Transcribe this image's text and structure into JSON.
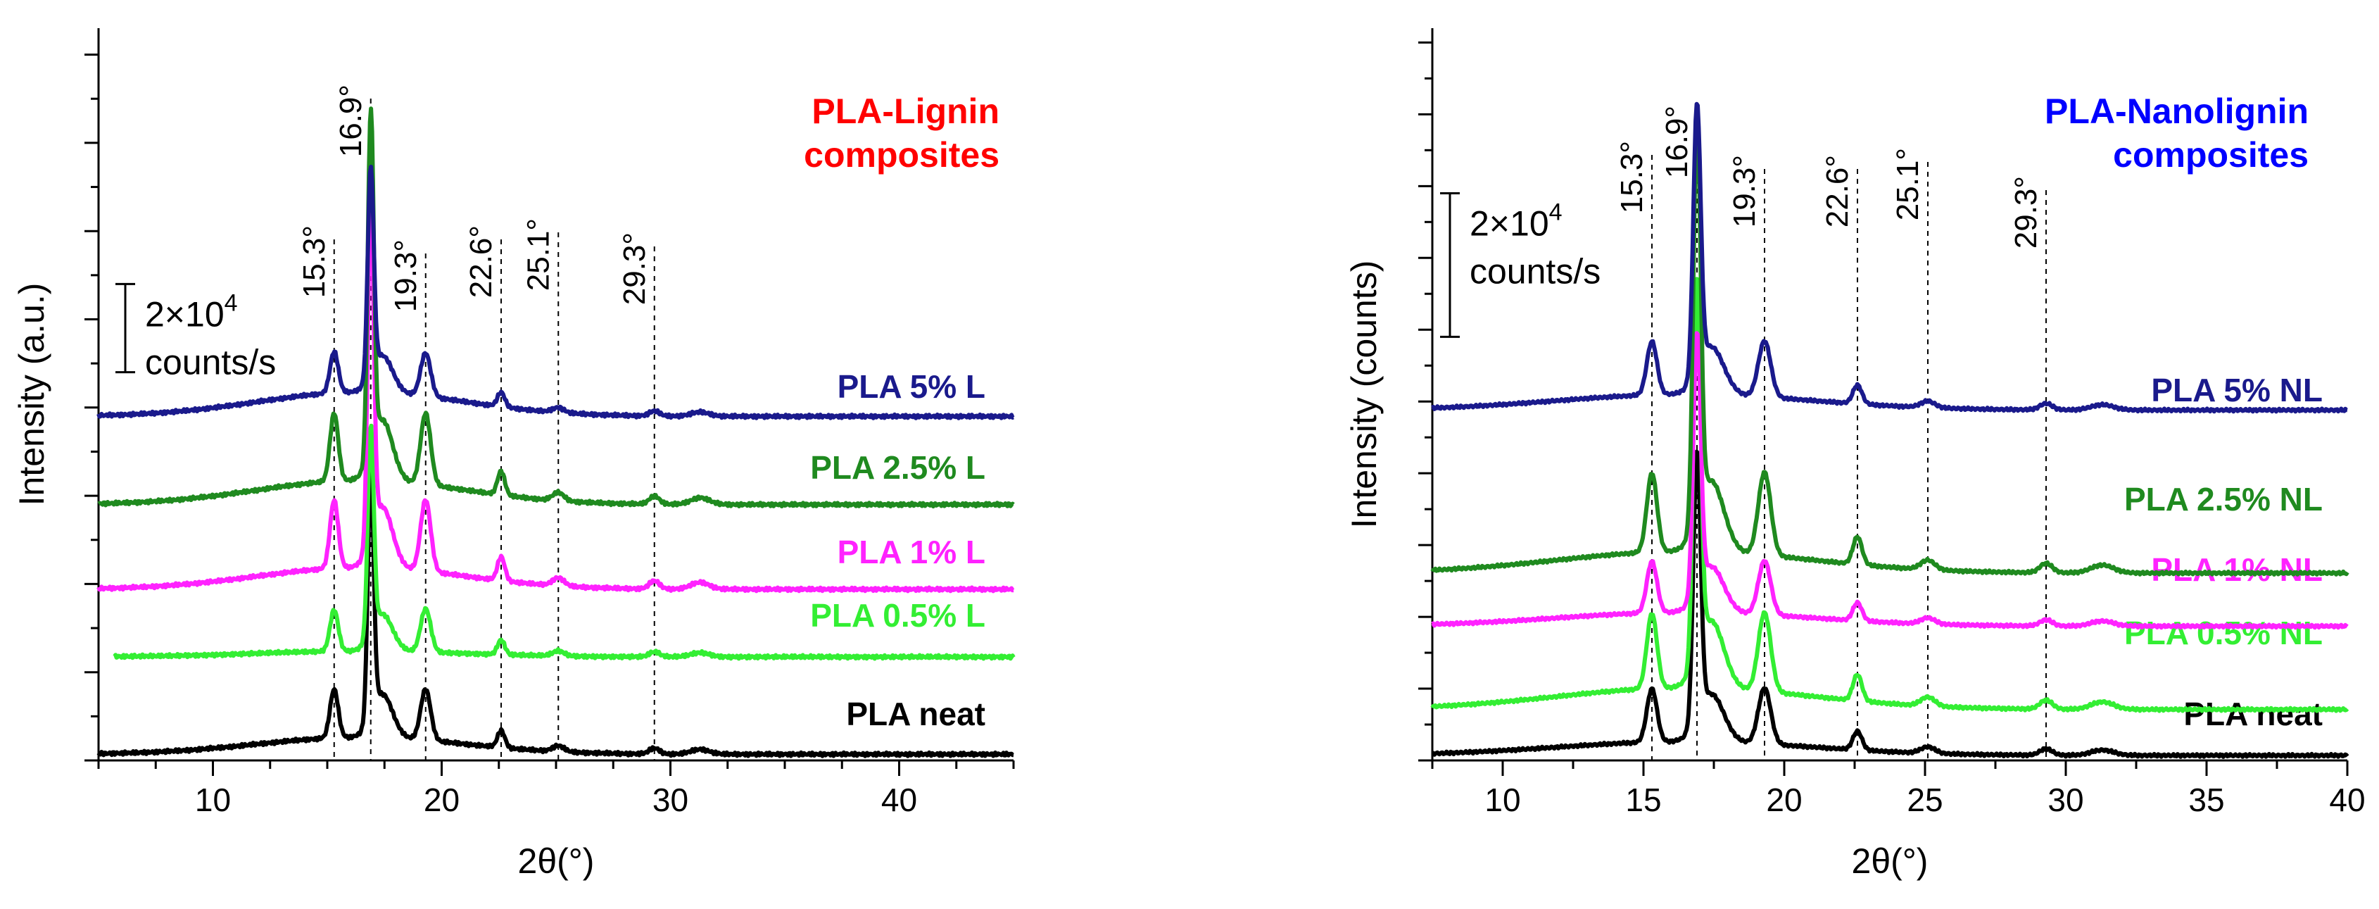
{
  "chart_data": [
    {
      "type": "line",
      "title": "PLA-Lignin\ncomposites",
      "title_color": "#ff0000",
      "xlabel": "2θ(°)",
      "ylabel": "Intensity (a.u.)",
      "xlim": [
        5,
        45
      ],
      "ylim": [
        0,
        8.3
      ],
      "xticks": [
        10,
        20,
        30,
        40
      ],
      "grid": false,
      "peaks": [
        "15.3°",
        "16.9°",
        "19.3°",
        "22.6°",
        "25.1°",
        "29.3°"
      ],
      "peak_positions": [
        15.3,
        16.9,
        19.3,
        22.6,
        25.1,
        29.3
      ],
      "scale_bar": {
        "text_main": "2×10",
        "text_exp": "4",
        "text_unit": "counts/s",
        "y_from": 4.4,
        "y_to": 5.4
      },
      "series": [
        {
          "name": "PLA neat",
          "color": "#000000",
          "offset": 0.0,
          "amp": 1.0,
          "bg": 0.35,
          "x_start": 5
        },
        {
          "name": "PLA 0.5% L",
          "color": "#33ee33",
          "offset": 1.15,
          "amp": 0.85,
          "bg": 0.12,
          "x_start": 5.7
        },
        {
          "name": "PLA 1% L",
          "color": "#ff22ff",
          "offset": 1.85,
          "amp": 1.4,
          "bg": 0.45,
          "x_start": 5
        },
        {
          "name": "PLA 2.5% L",
          "color": "#1f8a1f",
          "offset": 2.8,
          "amp": 1.4,
          "bg": 0.5,
          "x_start": 5
        },
        {
          "name": "PLA 5% L",
          "color": "#1a1a8c",
          "offset": 3.8,
          "amp": 0.85,
          "bg": 0.5,
          "x_start": 5
        }
      ]
    },
    {
      "type": "line",
      "title": "PLA-Nanolignin\ncomposites",
      "title_color": "#0000ff",
      "xlabel": "2θ(°)",
      "ylabel": "Intensity (counts)",
      "xlim": [
        7.5,
        40
      ],
      "ylim": [
        0,
        10.2
      ],
      "xticks": [
        10,
        15,
        20,
        25,
        30,
        35,
        40
      ],
      "grid": false,
      "peaks": [
        "15.3°",
        "16.9°",
        "19.3°",
        "22.6°",
        "25.1°",
        "29.3°"
      ],
      "peak_positions": [
        15.3,
        16.9,
        19.3,
        22.6,
        25.1,
        29.3
      ],
      "scale_bar": {
        "text_main": "2×10",
        "text_exp": "4",
        "text_unit": "counts/s",
        "y_from": 5.9,
        "y_to": 7.9
      },
      "series": [
        {
          "name": "PLA neat",
          "color": "#000000",
          "offset": 0.0,
          "amp": 1.35,
          "bg": 0.35,
          "x_start": 7.5
        },
        {
          "name": "PLA 0.5% NL",
          "color": "#33ee33",
          "offset": 0.6,
          "amp": 1.9,
          "bg": 0.55,
          "x_start": 7.5
        },
        {
          "name": "PLA 1% NL",
          "color": "#ff22ff",
          "offset": 1.8,
          "amp": 1.3,
          "bg": 0.35,
          "x_start": 7.5
        },
        {
          "name": "PLA 2.5% NL",
          "color": "#1f8a1f",
          "offset": 2.5,
          "amp": 2.0,
          "bg": 0.55,
          "x_start": 7.5
        },
        {
          "name": "PLA 5% NL",
          "color": "#1a1a8c",
          "offset": 4.8,
          "amp": 1.35,
          "bg": 0.4,
          "x_start": 7.5
        }
      ]
    }
  ]
}
